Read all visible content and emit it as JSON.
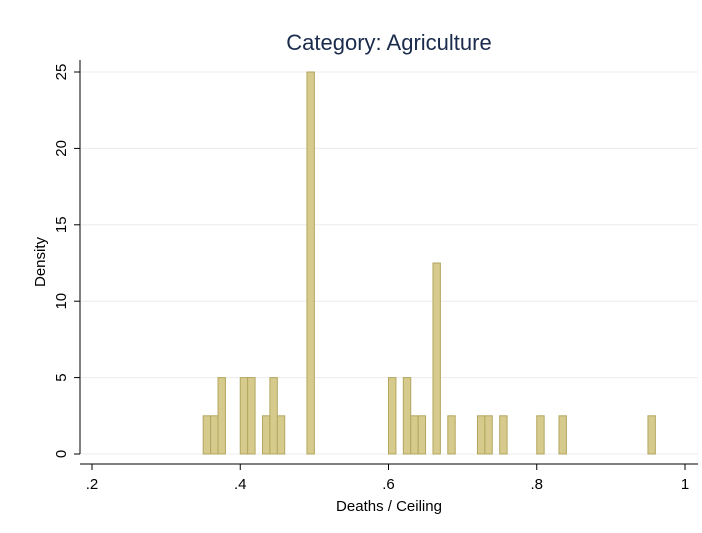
{
  "chart_data": {
    "type": "bar",
    "title": "Category: Agriculture",
    "xlabel": "Deaths / Ceiling",
    "ylabel": "Density",
    "xlim": [
      0.2,
      1.0
    ],
    "ylim": [
      0,
      25
    ],
    "x_ticks": [
      0.2,
      0.4,
      0.6,
      0.8,
      1.0
    ],
    "x_tick_labels": [
      ".2",
      ".4",
      ".6",
      ".8",
      "1"
    ],
    "y_ticks": [
      0,
      5,
      10,
      15,
      20,
      25
    ],
    "y_tick_labels": [
      "0",
      "5",
      "10",
      "15",
      "20",
      "25"
    ],
    "grid": true,
    "bin_width": 0.01,
    "bins": [
      {
        "x": 0.35,
        "value": 2.5
      },
      {
        "x": 0.36,
        "value": 2.5
      },
      {
        "x": 0.37,
        "value": 5
      },
      {
        "x": 0.4,
        "value": 5
      },
      {
        "x": 0.41,
        "value": 5
      },
      {
        "x": 0.43,
        "value": 2.5
      },
      {
        "x": 0.44,
        "value": 5
      },
      {
        "x": 0.45,
        "value": 2.5
      },
      {
        "x": 0.49,
        "value": 25
      },
      {
        "x": 0.6,
        "value": 5
      },
      {
        "x": 0.62,
        "value": 5
      },
      {
        "x": 0.63,
        "value": 2.5
      },
      {
        "x": 0.64,
        "value": 2.5
      },
      {
        "x": 0.66,
        "value": 12.5
      },
      {
        "x": 0.68,
        "value": 2.5
      },
      {
        "x": 0.72,
        "value": 2.5
      },
      {
        "x": 0.73,
        "value": 2.5
      },
      {
        "x": 0.75,
        "value": 2.5
      },
      {
        "x": 0.8,
        "value": 2.5
      },
      {
        "x": 0.83,
        "value": 2.5
      },
      {
        "x": 0.95,
        "value": 2.5
      }
    ],
    "colors": {
      "bar_fill": "#d6cb8c",
      "bar_stroke": "#b3a65f",
      "title": "#1a2b4c"
    }
  }
}
